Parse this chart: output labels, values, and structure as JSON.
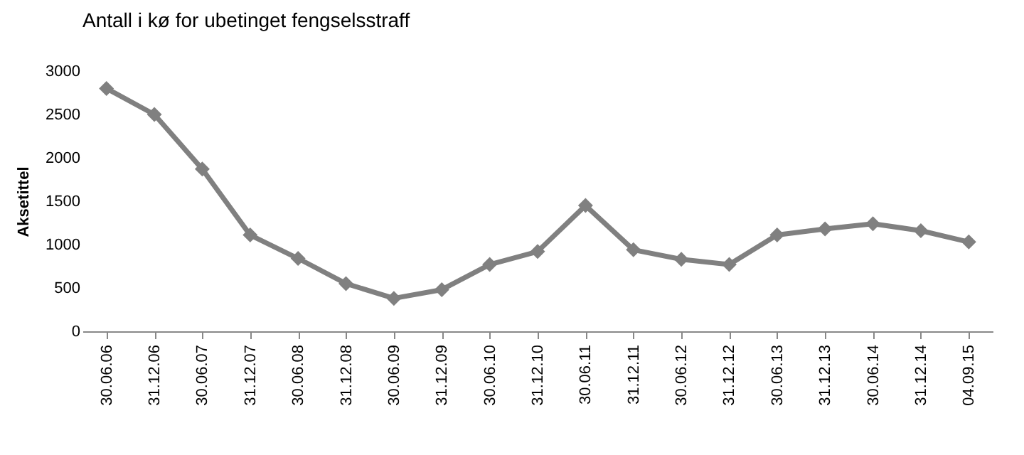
{
  "chart_data": {
    "type": "line",
    "title": "Antall i kø for ubetinget fengselsstraff",
    "ylabel": "Aksetittel",
    "categories": [
      "30.06.06",
      "31.12.06",
      "30.06.07",
      "31.12.07",
      "30.06.08",
      "31.12.08",
      "30.06.09",
      "31.12.09",
      "30.06.10",
      "31.12.10",
      "30.06.11",
      "31.12.11",
      "30.06.12",
      "31.12.12",
      "30.06.13",
      "31.12.13",
      "30.06.14",
      "31.12.14",
      "04.09.15"
    ],
    "series": [
      {
        "color": "#808080",
        "values": [
          2800,
          2500,
          1870,
          1110,
          840,
          550,
          380,
          480,
          770,
          920,
          1450,
          940,
          830,
          770,
          1110,
          1180,
          1240,
          1160,
          1030
        ]
      }
    ],
    "ylim": [
      0,
      3000
    ],
    "yticks": [
      0,
      500,
      1000,
      1500,
      2000,
      2500,
      3000
    ],
    "grid": false,
    "marker": "diamond",
    "line_style": "solid"
  }
}
